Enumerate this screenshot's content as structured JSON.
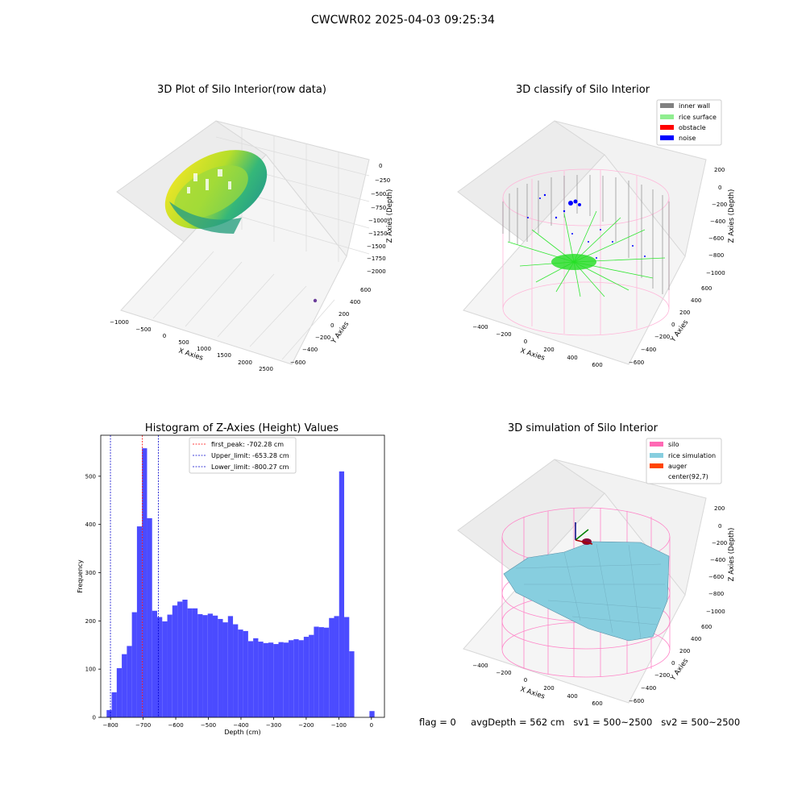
{
  "figure": {
    "suptitle": "CWCWR02 2025-04-03 09:25:34",
    "footer": {
      "flag": "flag = 0",
      "avg_depth": "avgDepth = 562 cm",
      "sv1": "sv1 = 500~2500",
      "sv2": "sv2 = 500~2500"
    }
  },
  "chart_data": [
    {
      "type": "scatter",
      "title": "3D Plot of Silo Interior(row data)",
      "xlabel": "X Axies",
      "ylabel": "Y Axies",
      "zlabel": "Z Axies (Depth)",
      "x_ticks": [
        "−1000",
        "−500",
        "0",
        "500",
        "1000",
        "1500",
        "2000",
        "2500"
      ],
      "y_ticks": [
        "600",
        "400",
        "200",
        "0",
        "−200",
        "−400",
        "−600"
      ],
      "z_ticks": [
        "0",
        "−250",
        "−500",
        "−750",
        "−1000",
        "−1250",
        "−1500",
        "−1750",
        "−2000"
      ],
      "colormap": "viridis",
      "xlim": [
        -1000,
        2500
      ],
      "ylim": [
        -600,
        600
      ],
      "zlim": [
        -2000,
        0
      ]
    },
    {
      "type": "scatter",
      "title": "3D classify of Silo Interior",
      "xlabel": "X Axies",
      "ylabel": "Y Axies",
      "zlabel": "Z Axies (Depth)",
      "x_ticks": [
        "−400",
        "−200",
        "0",
        "200",
        "400",
        "600"
      ],
      "y_ticks": [
        "600",
        "400",
        "200",
        "0",
        "−200",
        "−400",
        "−600"
      ],
      "z_ticks": [
        "200",
        "0",
        "−200",
        "−400",
        "−600",
        "−800",
        "−1000"
      ],
      "legend_position": "top-right",
      "legend": [
        {
          "label": "inner wall",
          "color": "#808080"
        },
        {
          "label": "rice surface",
          "color": "#90ee90"
        },
        {
          "label": "obstacle",
          "color": "#ff0000"
        },
        {
          "label": "noise",
          "color": "#0000ff"
        }
      ]
    },
    {
      "type": "bar",
      "title": "Histogram of Z-Axies (Height) Values",
      "xlabel": "Depth (cm)",
      "ylabel": "Frequency",
      "xlim": [
        -830,
        40
      ],
      "ylim": [
        0,
        585
      ],
      "x_ticks": [
        -800,
        -700,
        -600,
        -500,
        -400,
        -300,
        -200,
        -100,
        0
      ],
      "x_tick_labels": [
        "−800",
        "−700",
        "−600",
        "−500",
        "−400",
        "−300",
        "−200",
        "−100",
        "0"
      ],
      "y_ticks": [
        0,
        100,
        200,
        300,
        400,
        500
      ],
      "y_tick_labels": [
        "0",
        "100",
        "200",
        "300",
        "400",
        "500"
      ],
      "bar_color": "#4b4bff",
      "bin_width": 15.5,
      "bins": [
        {
          "x0": -812,
          "value": 15
        },
        {
          "x0": -796.5,
          "value": 52
        },
        {
          "x0": -781,
          "value": 102
        },
        {
          "x0": -765.5,
          "value": 131
        },
        {
          "x0": -750,
          "value": 148
        },
        {
          "x0": -734.5,
          "value": 218
        },
        {
          "x0": -719,
          "value": 396
        },
        {
          "x0": -703.5,
          "value": 558
        },
        {
          "x0": -688,
          "value": 413
        },
        {
          "x0": -672.5,
          "value": 221
        },
        {
          "x0": -657,
          "value": 208
        },
        {
          "x0": -641.5,
          "value": 199
        },
        {
          "x0": -626,
          "value": 213
        },
        {
          "x0": -610.5,
          "value": 232
        },
        {
          "x0": -595,
          "value": 240
        },
        {
          "x0": -579.5,
          "value": 244
        },
        {
          "x0": -564,
          "value": 226
        },
        {
          "x0": -548.5,
          "value": 226
        },
        {
          "x0": -533,
          "value": 214
        },
        {
          "x0": -517.5,
          "value": 212
        },
        {
          "x0": -502,
          "value": 215
        },
        {
          "x0": -486.5,
          "value": 211
        },
        {
          "x0": -471,
          "value": 204
        },
        {
          "x0": -455.5,
          "value": 197
        },
        {
          "x0": -440,
          "value": 210
        },
        {
          "x0": -424.5,
          "value": 193
        },
        {
          "x0": -409,
          "value": 182
        },
        {
          "x0": -393.5,
          "value": 179
        },
        {
          "x0": -378,
          "value": 158
        },
        {
          "x0": -362.5,
          "value": 164
        },
        {
          "x0": -347,
          "value": 157
        },
        {
          "x0": -331.5,
          "value": 154
        },
        {
          "x0": -316,
          "value": 155
        },
        {
          "x0": -300.5,
          "value": 152
        },
        {
          "x0": -285,
          "value": 156
        },
        {
          "x0": -269.5,
          "value": 155
        },
        {
          "x0": -254,
          "value": 160
        },
        {
          "x0": -238.5,
          "value": 162
        },
        {
          "x0": -223,
          "value": 160
        },
        {
          "x0": -207.5,
          "value": 167
        },
        {
          "x0": -192,
          "value": 171
        },
        {
          "x0": -176.5,
          "value": 188
        },
        {
          "x0": -161,
          "value": 187
        },
        {
          "x0": -145.5,
          "value": 186
        },
        {
          "x0": -130,
          "value": 206
        },
        {
          "x0": -114.5,
          "value": 210
        },
        {
          "x0": -99,
          "value": 510
        },
        {
          "x0": -83.5,
          "value": 208
        },
        {
          "x0": -68,
          "value": 137
        },
        {
          "x0": -52.5,
          "value": 0
        },
        {
          "x0": -37,
          "value": 0
        },
        {
          "x0": -21.5,
          "value": 0
        },
        {
          "x0": -6,
          "value": 13
        }
      ],
      "vlines": [
        {
          "label": "first_peak: -702.28 cm",
          "x": -702.28,
          "color": "#ff0000"
        },
        {
          "label": "Upper_limit: -653.28 cm",
          "x": -653.28,
          "color": "#0000cc"
        },
        {
          "label": "Lower_limit: -800.27 cm",
          "x": -800.27,
          "color": "#0000cc"
        }
      ],
      "legend_position": "top-center"
    },
    {
      "type": "surface",
      "title": "3D simulation of Silo Interior",
      "xlabel": "X Axies",
      "ylabel": "Y Axies",
      "zlabel": "Z Axies (Depth)",
      "x_ticks": [
        "−400",
        "−200",
        "0",
        "200",
        "400",
        "600"
      ],
      "y_ticks": [
        "600",
        "400",
        "200",
        "0",
        "−200",
        "−400",
        "−600"
      ],
      "z_ticks": [
        "200",
        "0",
        "−200",
        "−400",
        "−600",
        "−800",
        "−1000"
      ],
      "legend_position": "top-right",
      "legend": [
        {
          "label": "silo",
          "color": "#ff69b4"
        },
        {
          "label": "rice simulation",
          "color": "#87cedf"
        },
        {
          "label": "auger",
          "color": "#ff4500"
        },
        {
          "label": "center(92,7)",
          "color": "#ffffff"
        }
      ]
    }
  ]
}
